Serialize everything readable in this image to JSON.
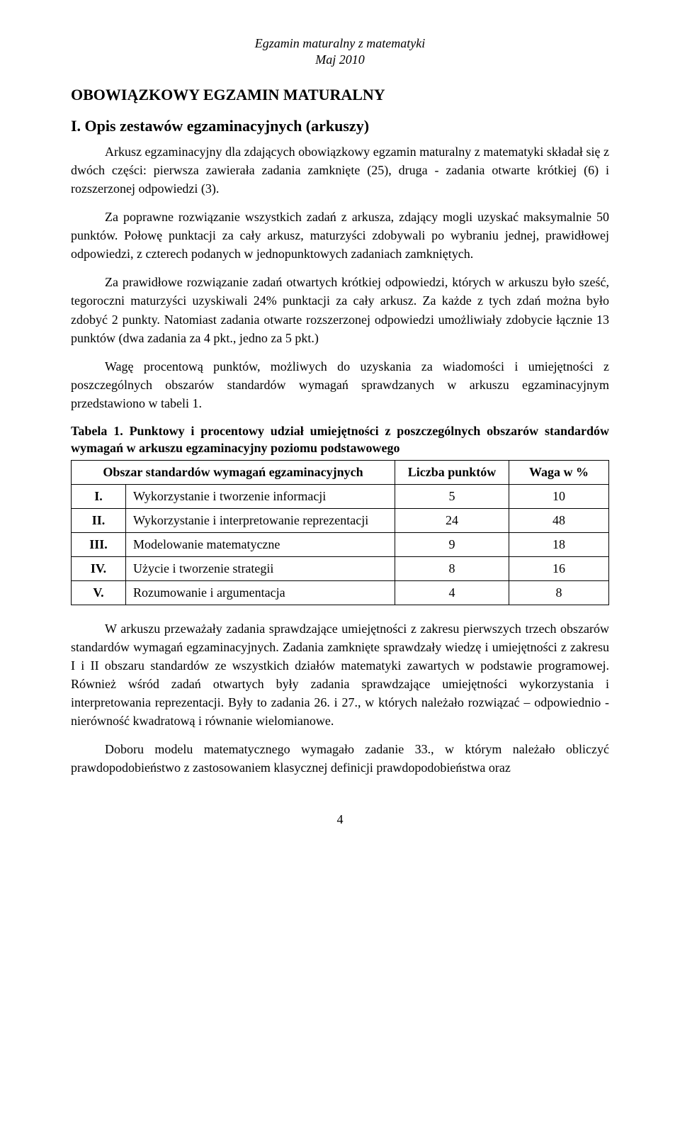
{
  "header": {
    "line1": "Egzamin maturalny z matematyki",
    "line2": "Maj 2010"
  },
  "title": "OBOWIĄZKOWY EGZAMIN MATURALNY",
  "section_heading": "I. Opis zestawów egzaminacyjnych (arkuszy)",
  "paragraphs": {
    "p1": "Arkusz egzaminacyjny dla zdających obowiązkowy egzamin maturalny z matematyki składał się z dwóch części: pierwsza zawierała zadania zamknięte (25), druga - zadania otwarte krótkiej (6) i rozszerzonej odpowiedzi (3).",
    "p2": "Za poprawne rozwiązanie wszystkich zadań z arkusza, zdający mogli uzyskać maksymalnie 50 punktów. Połowę punktacji za cały arkusz, maturzyści zdobywali po wybraniu jednej, prawidłowej odpowiedzi, z czterech podanych w jednopunktowych zadaniach zamkniętych.",
    "p3": "Za prawidłowe rozwiązanie zadań otwartych krótkiej odpowiedzi, których w arkuszu było sześć, tegoroczni maturzyści uzyskiwali 24% punktacji za cały arkusz. Za każde z tych zdań można było zdobyć 2 punkty. Natomiast zadania otwarte rozszerzonej odpowiedzi umożliwiały zdobycie łącznie 13 punktów (dwa zadania za 4 pkt., jedno za 5 pkt.)",
    "p4": "Wagę procentową punktów, możliwych do uzyskania za wiadomości i umiejętności z poszczególnych obszarów standardów wymagań sprawdzanych w arkuszu egzaminacyjnym przedstawiono w tabeli 1.",
    "p5": "W arkuszu przeważały zadania sprawdzające umiejętności z zakresu pierwszych trzech obszarów standardów wymagań egzaminacyjnych. Zadania zamknięte sprawdzały wiedzę i umiejętności z zakresu I i II obszaru standardów ze wszystkich działów matematyki zawartych w podstawie programowej. Również wśród zadań otwartych były zadania sprawdzające umiejętności wykorzystania i interpretowania reprezentacji. Były to zadania 26. i 27., w których należało rozwiązać – odpowiednio - nierówność kwadratową i równanie wielomianowe.",
    "p6": "Doboru modelu matematycznego wymagało zadanie 33., w którym należało obliczyć prawdopodobieństwo z zastosowaniem klasycznej definicji prawdopodobieństwa oraz"
  },
  "table": {
    "caption_label": "Tabela 1.",
    "caption_text": "Punktowy i procentowy udział umiejętności z poszczególnych obszarów standardów wymagań w arkuszu egzaminacyjny poziomu podstawowego",
    "header_area": "Obszar standardów wymagań egzaminacyjnych",
    "header_points": "Liczba punktów",
    "header_weight": "Waga w %",
    "rows": [
      {
        "roman": "I.",
        "name": "Wykorzystanie i tworzenie informacji",
        "points": "5",
        "weight": "10"
      },
      {
        "roman": "II.",
        "name": "Wykorzystanie i interpretowanie reprezentacji",
        "points": "24",
        "weight": "48"
      },
      {
        "roman": "III.",
        "name": "Modelowanie matematyczne",
        "points": "9",
        "weight": "18"
      },
      {
        "roman": "IV.",
        "name": "Użycie i tworzenie strategii",
        "points": "8",
        "weight": "16"
      },
      {
        "roman": "V.",
        "name": "Rozumowanie i argumentacja",
        "points": "4",
        "weight": "8"
      }
    ]
  },
  "page_number": "4"
}
